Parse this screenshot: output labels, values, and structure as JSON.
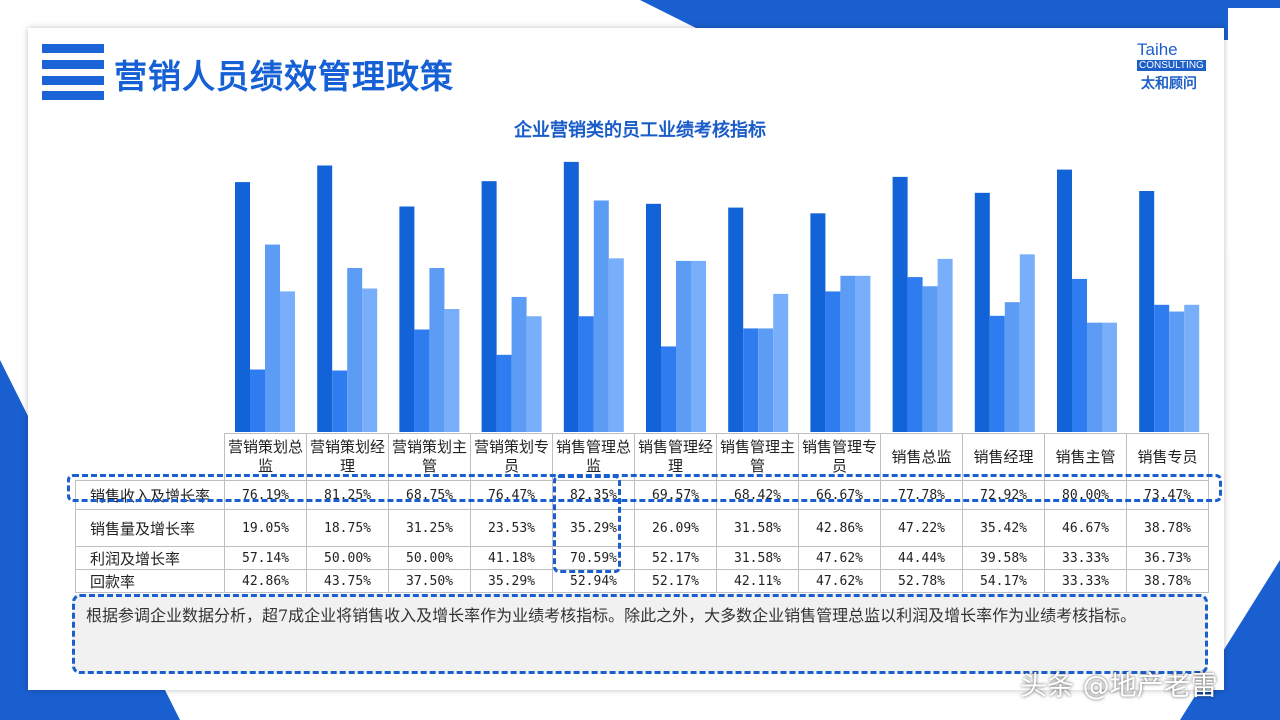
{
  "page": {
    "title": "营销人员绩效管理政策",
    "logo": {
      "line1": "Taihe",
      "line2": "CONSULTING",
      "line3": "太和顾问"
    },
    "watermark": "头条 @地产老雷",
    "note": "根据参调企业数据分析，超7成企业将销售收入及增长率作为业绩考核指标。除此之外，大多数企业销售管理总监以利润及增长率作为业绩考核指标。",
    "colors": {
      "accent": "#1a64d8"
    }
  },
  "chart_data": {
    "type": "bar",
    "title": "企业营销类的员工业绩考核指标",
    "categories": [
      "营销策划总监",
      "营销策划经理",
      "营销策划主管",
      "营销策划专员",
      "销售管理总监",
      "销售管理经理",
      "销售管理主管",
      "销售管理专员",
      "销售总监",
      "销售经理",
      "销售主管",
      "销售专员"
    ],
    "series": [
      {
        "name": "销售收入及增长率",
        "color": "#1262d8",
        "values": [
          76.19,
          81.25,
          68.75,
          76.47,
          82.35,
          69.57,
          68.42,
          66.67,
          77.78,
          72.92,
          80.0,
          73.47
        ]
      },
      {
        "name": "销售量及增长率",
        "color": "#2f7cf0",
        "values": [
          19.05,
          18.75,
          31.25,
          23.53,
          35.29,
          26.09,
          31.58,
          42.86,
          47.22,
          35.42,
          46.67,
          38.78
        ]
      },
      {
        "name": "利润及增长率",
        "color": "#5d9cf5",
        "values": [
          57.14,
          50.0,
          50.0,
          41.18,
          70.59,
          52.17,
          31.58,
          47.62,
          44.44,
          39.58,
          33.33,
          36.73
        ]
      },
      {
        "name": "回款率",
        "color": "#78aefa",
        "values": [
          42.86,
          43.75,
          37.5,
          35.29,
          52.94,
          52.17,
          42.11,
          47.62,
          52.78,
          54.17,
          33.33,
          38.78
        ]
      }
    ],
    "table_rows": [
      {
        "label": "销售收入及增长率",
        "cells": [
          "76.19%",
          "81.25%",
          "68.75%",
          "76.47%",
          "82.35%",
          "69.57%",
          "68.42%",
          "66.67%",
          "77.78%",
          "72.92%",
          "80.00%",
          "73.47%"
        ]
      },
      {
        "label": "销售量及增长率",
        "cells": [
          "19.05%",
          "18.75%",
          "31.25%",
          "23.53%",
          "35.29%",
          "26.09%",
          "31.58%",
          "42.86%",
          "47.22%",
          "35.42%",
          "46.67%",
          "38.78%"
        ]
      },
      {
        "label": "利润及增长率",
        "cells": [
          "57.14%",
          "50.00%",
          "50.00%",
          "41.18%",
          "70.59%",
          "52.17%",
          "31.58%",
          "47.62%",
          "44.44%",
          "39.58%",
          "33.33%",
          "36.73%"
        ]
      },
      {
        "label": "回款率",
        "cells": [
          "42.86%",
          "43.75%",
          "37.50%",
          "35.29%",
          "52.94%",
          "52.17%",
          "42.11%",
          "47.62%",
          "52.78%",
          "54.17%",
          "33.33%",
          "38.78%"
        ]
      }
    ],
    "ylim": [
      0,
      90
    ],
    "grid": false,
    "legend": "data-table"
  }
}
